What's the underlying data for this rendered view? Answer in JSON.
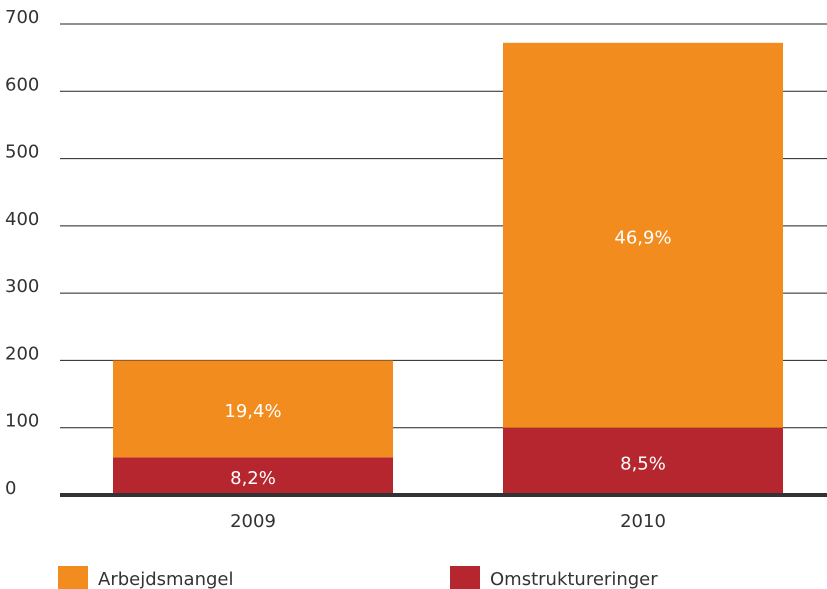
{
  "chart_data": {
    "type": "stacked_bar",
    "categories": [
      "2009",
      "2010"
    ],
    "series": [
      {
        "name": "Omstruktureringer",
        "color": "#b5262e",
        "values": [
          56,
          100
        ],
        "labels": [
          "8,2%",
          "8,5%"
        ]
      },
      {
        "name": "Arbejdsmangel",
        "color": "#f28c1f",
        "values": [
          144,
          572
        ],
        "labels": [
          "19,4%",
          "46,9%"
        ]
      }
    ],
    "ylim": [
      0,
      700
    ],
    "yticks": [
      0,
      100,
      200,
      300,
      400,
      500,
      600,
      700
    ],
    "grid": true
  }
}
